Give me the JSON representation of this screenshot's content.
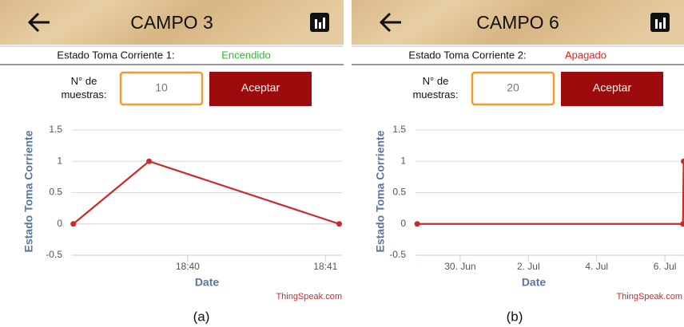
{
  "panels": [
    {
      "header": {
        "title": "CAMPO 3"
      },
      "status": {
        "label": "Estado Toma Corriente 1:",
        "value": "Encendido",
        "color": "#2eb82e"
      },
      "samples": {
        "label": "N° de muestras:",
        "input": "10",
        "button": "Aceptar"
      },
      "chart": {
        "type": "line",
        "ylabel": "Estado Toma Corriente",
        "xlabel": "Date",
        "credit": "ThingSpeak.com",
        "xlim": [
          1119.16,
          1121.12
        ],
        "ylim": [
          -0.5,
          1.5
        ],
        "xticks": [
          {
            "value": 1120,
            "label": "18:40"
          },
          {
            "value": 1121,
            "label": "18:41"
          }
        ],
        "yticks": [
          1.5,
          1,
          0.5,
          0,
          -0.5
        ],
        "grid": true,
        "series": [
          {
            "color": "#cc2929",
            "x": [
              1119.17,
              1119.72,
              1121.1
            ],
            "values": [
              0,
              1,
              0
            ]
          }
        ]
      },
      "caption": "(a)"
    },
    {
      "header": {
        "title": "CAMPO 6"
      },
      "status": {
        "label": "Estado Toma Corriente 2:",
        "value": "Apagado",
        "color": "#e0201c"
      },
      "samples": {
        "label": "N° de muestras:",
        "input": "20",
        "button": "Aceptar"
      },
      "chart": {
        "type": "line",
        "ylabel": "Estado Toma Corriente",
        "xlabel": "Date",
        "credit": "ThingSpeak.com",
        "xlim": [
          179.69,
          187.56
        ],
        "ylim": [
          -0.5,
          1.5
        ],
        "xticks": [
          {
            "value": 181,
            "label": "30. Jun"
          },
          {
            "value": 183,
            "label": "2. Jul"
          },
          {
            "value": 185,
            "label": "4. Jul"
          },
          {
            "value": 187,
            "label": "6. Jul"
          }
        ],
        "yticks": [
          1.5,
          1,
          0.5,
          0,
          -0.5
        ],
        "grid": true,
        "series": [
          {
            "color": "#cc2929",
            "x": [
              179.74,
              187.53,
              187.55
            ],
            "values": [
              0,
              0,
              1
            ]
          }
        ]
      },
      "caption": "(b)"
    }
  ]
}
